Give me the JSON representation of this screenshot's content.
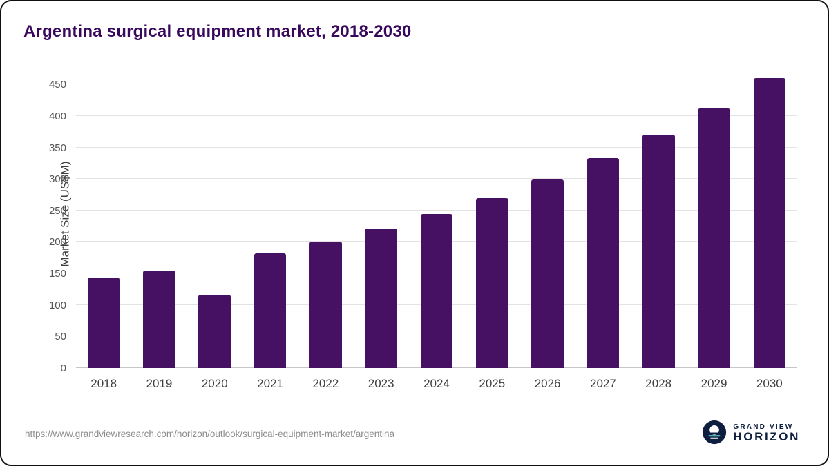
{
  "chart_data": {
    "type": "bar",
    "title": "Argentina surgical equipment market, 2018-2030",
    "xlabel": "",
    "ylabel": "Market Size (US$M)",
    "categories": [
      "2018",
      "2019",
      "2020",
      "2021",
      "2022",
      "2023",
      "2024",
      "2025",
      "2026",
      "2027",
      "2028",
      "2029",
      "2030"
    ],
    "values": [
      143,
      155,
      116,
      182,
      200,
      221,
      244,
      270,
      299,
      333,
      370,
      412,
      460
    ],
    "yticks": [
      0,
      50,
      100,
      150,
      200,
      250,
      300,
      350,
      400,
      450
    ],
    "ylim": [
      0,
      470
    ],
    "grid": "horizontal",
    "legend": "none"
  },
  "footer": {
    "source_url": "https://www.grandviewresearch.com/horizon/outlook/surgical-equipment-market/argentina",
    "logo": {
      "line1": "GRAND VIEW",
      "line2": "HORIZON"
    }
  },
  "colors": {
    "title_text": "#38085c",
    "bar": "#471163",
    "axis_text": "#3f3f3f",
    "tick_text": "#555555",
    "grid_line": "#e3e3e3",
    "baseline": "#c6c6c6",
    "source_text": "#8d8d8d",
    "logo_navy": "#0e1e3e",
    "logo_teal": "#59c3cd"
  }
}
